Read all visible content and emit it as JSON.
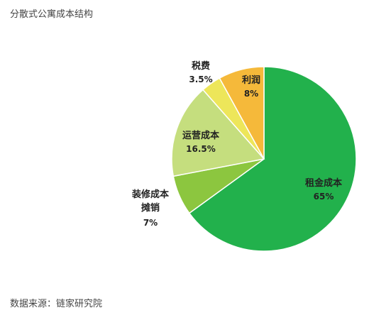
{
  "title": "分散式公寓成本结构",
  "source": "数据来源：链家研究院",
  "chart_data": {
    "type": "pie",
    "slices": [
      {
        "name": "租金成本",
        "value_label": "65%",
        "value": 65,
        "color": "#22b14c"
      },
      {
        "name": "装修成本摊销",
        "name_lines": [
          "装修成本",
          "摊销"
        ],
        "value_label": "7%",
        "value": 7,
        "color": "#8cc63f"
      },
      {
        "name": "运营成本",
        "value_label": "16.5%",
        "value": 16.5,
        "color": "#c5de7e"
      },
      {
        "name": "税费",
        "value_label": "3.5%",
        "value": 3.5,
        "color": "#ede65a"
      },
      {
        "name": "利润",
        "value_label": "8%",
        "value": 8,
        "color": "#f5b93a"
      }
    ]
  }
}
